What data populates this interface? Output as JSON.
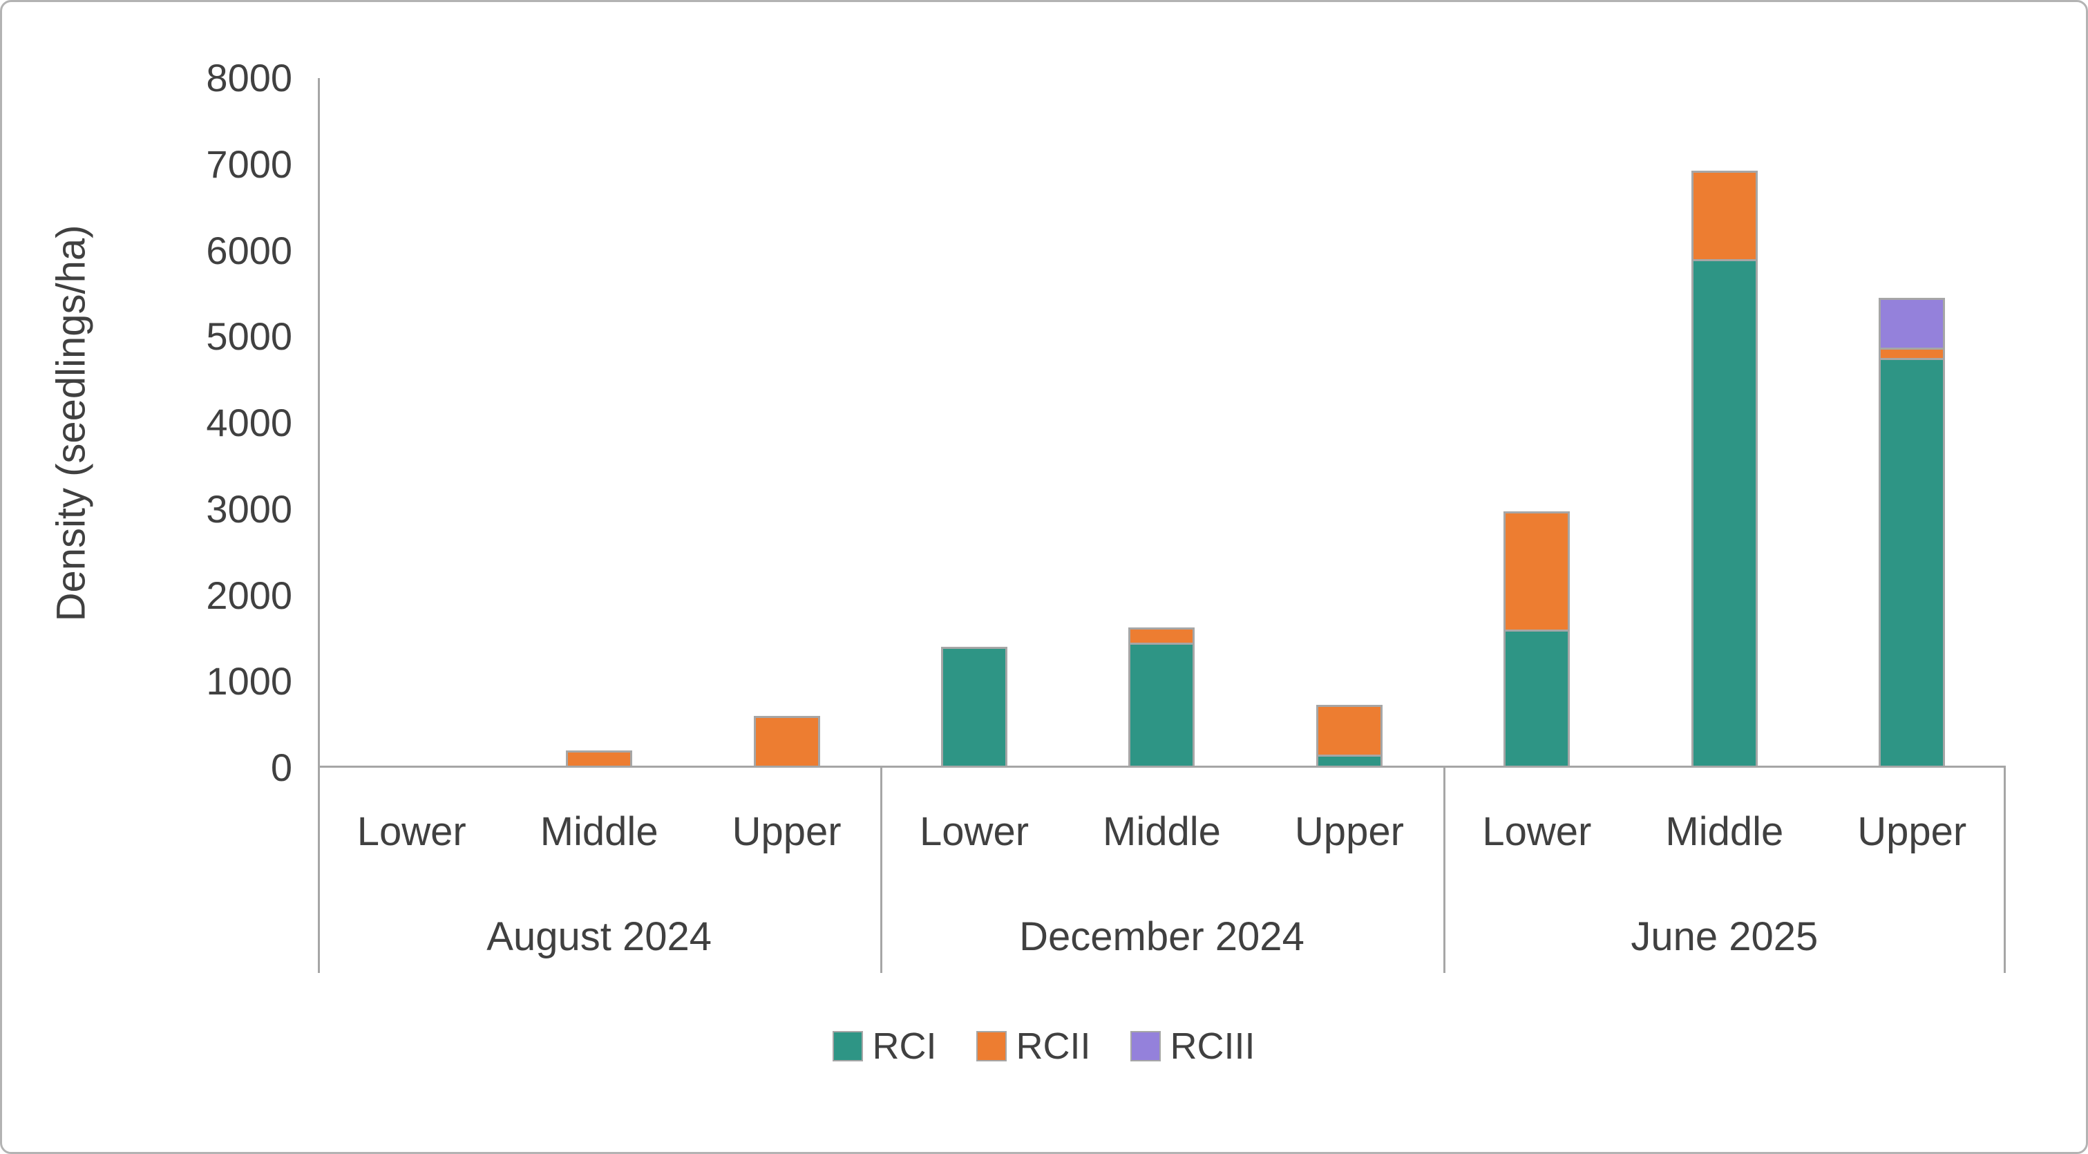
{
  "chart_data": {
    "type": "bar",
    "stacked": true,
    "title": "",
    "xlabel": "",
    "ylabel": "Density (seedlings/ha)",
    "ylim": [
      0,
      8000
    ],
    "ytick_step": 1000,
    "grid": false,
    "legend_position": "bottom",
    "groups": [
      {
        "label": "August 2024",
        "categories": [
          "Lower",
          "Middle",
          "Upper"
        ]
      },
      {
        "label": "December 2024",
        "categories": [
          "Lower",
          "Middle",
          "Upper"
        ]
      },
      {
        "label": "June 2025",
        "categories": [
          "Lower",
          "Middle",
          "Upper"
        ]
      }
    ],
    "series": [
      {
        "name": "RCI",
        "color": "#2e9585",
        "values": [
          0,
          0,
          0,
          1400,
          1450,
          150,
          1600,
          5900,
          4750
        ]
      },
      {
        "name": "RCII",
        "color": "#ed7d31",
        "values": [
          0,
          200,
          600,
          0,
          200,
          600,
          1400,
          1050,
          150
        ]
      },
      {
        "name": "RCIII",
        "color": "#9481db",
        "values": [
          0,
          0,
          0,
          0,
          0,
          0,
          0,
          0,
          600
        ]
      }
    ],
    "bar_border_color": "#a6a6a6",
    "axis_color": "#a6a6a6",
    "text_color": "#404040"
  }
}
